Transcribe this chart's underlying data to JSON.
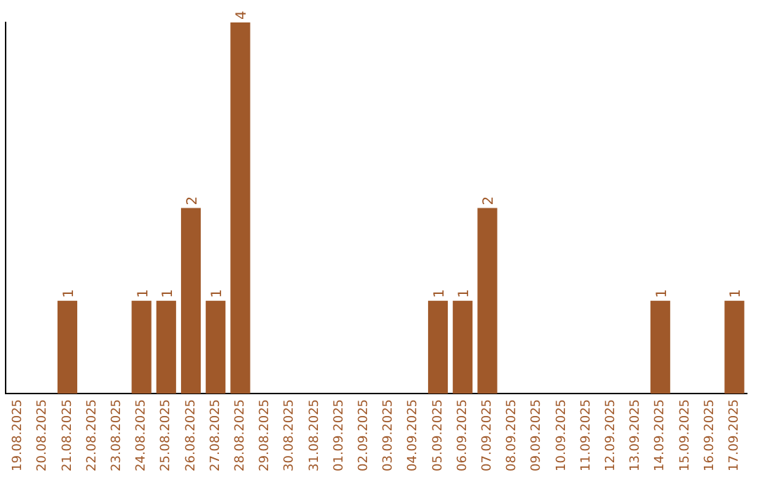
{
  "chart_data": {
    "type": "bar",
    "categories": [
      "19.08.2025",
      "20.08.2025",
      "21.08.2025",
      "22.08.2025",
      "23.08.2025",
      "24.08.2025",
      "25.08.2025",
      "26.08.2025",
      "27.08.2025",
      "28.08.2025",
      "29.08.2025",
      "30.08.2025",
      "31.08.2025",
      "01.09.2025",
      "02.09.2025",
      "03.09.2025",
      "04.09.2025",
      "05.09.2025",
      "06.09.2025",
      "07.09.2025",
      "08.09.2025",
      "09.09.2025",
      "10.09.2025",
      "11.09.2025",
      "12.09.2025",
      "13.09.2025",
      "14.09.2025",
      "15.09.2025",
      "16.09.2025",
      "17.09.2025"
    ],
    "values": [
      0,
      0,
      1,
      0,
      0,
      1,
      1,
      2,
      1,
      4,
      0,
      0,
      0,
      0,
      0,
      0,
      0,
      1,
      1,
      2,
      0,
      0,
      0,
      0,
      0,
      0,
      1,
      0,
      0,
      1
    ],
    "value_labels": [
      null,
      null,
      "1",
      null,
      null,
      "1",
      "1",
      "2",
      "1",
      "4",
      null,
      null,
      null,
      null,
      null,
      null,
      null,
      "1",
      "1",
      "2",
      null,
      null,
      null,
      null,
      null,
      null,
      "1",
      null,
      null,
      "1"
    ],
    "color": "#a0592a",
    "grid": false,
    "legend": false,
    "tick_labels": "x"
  }
}
